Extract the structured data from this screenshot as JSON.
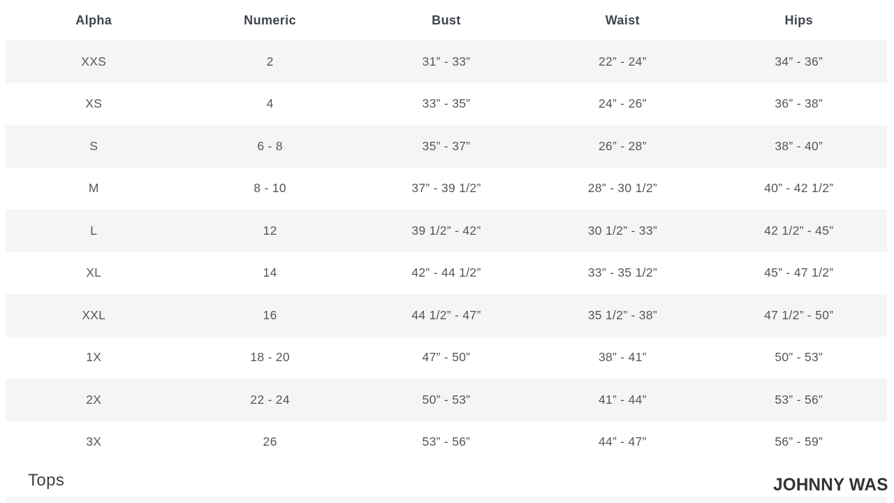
{
  "table": {
    "columns": [
      "Alpha",
      "Numeric",
      "Bust",
      "Waist",
      "Hips"
    ],
    "rows": [
      [
        "XXS",
        "2",
        "31” - 33”",
        "22” - 24”",
        "34” - 36”"
      ],
      [
        "XS",
        "4",
        "33” - 35”",
        "24” - 26”",
        "36” - 38”"
      ],
      [
        "S",
        "6 - 8",
        "35” - 37”",
        "26” - 28”",
        "38” - 40”"
      ],
      [
        "M",
        "8 - 10",
        "37” - 39 1/2”",
        "28” - 30 1/2”",
        "40” - 42 1/2”"
      ],
      [
        "L",
        "12",
        "39 1/2” - 42”",
        "30 1/2” - 33”",
        "42 1/2” - 45”"
      ],
      [
        "XL",
        "14",
        "42” - 44 1/2”",
        "33” - 35 1/2”",
        "45” - 47 1/2”"
      ],
      [
        "XXL",
        "16",
        "44 1/2” - 47”",
        "35 1/2” - 38”",
        "47 1/2” - 50”"
      ],
      [
        "1X",
        "18 - 20",
        "47” - 50”",
        "38” - 41”",
        "50” - 53”"
      ],
      [
        "2X",
        "22 - 24",
        "50” - 53”",
        "41” - 44”",
        "53” - 56”"
      ],
      [
        "3X",
        "26",
        "53” - 56”",
        "44” - 47”",
        "56” - 59”"
      ]
    ]
  },
  "footer": {
    "section_label": "Tops",
    "brand": "JOHNNY WAS"
  },
  "colors": {
    "stripe": "#f5f5f5",
    "body_text": "#54565b",
    "header_text": "#3e434e",
    "brand_text": "#333333"
  }
}
